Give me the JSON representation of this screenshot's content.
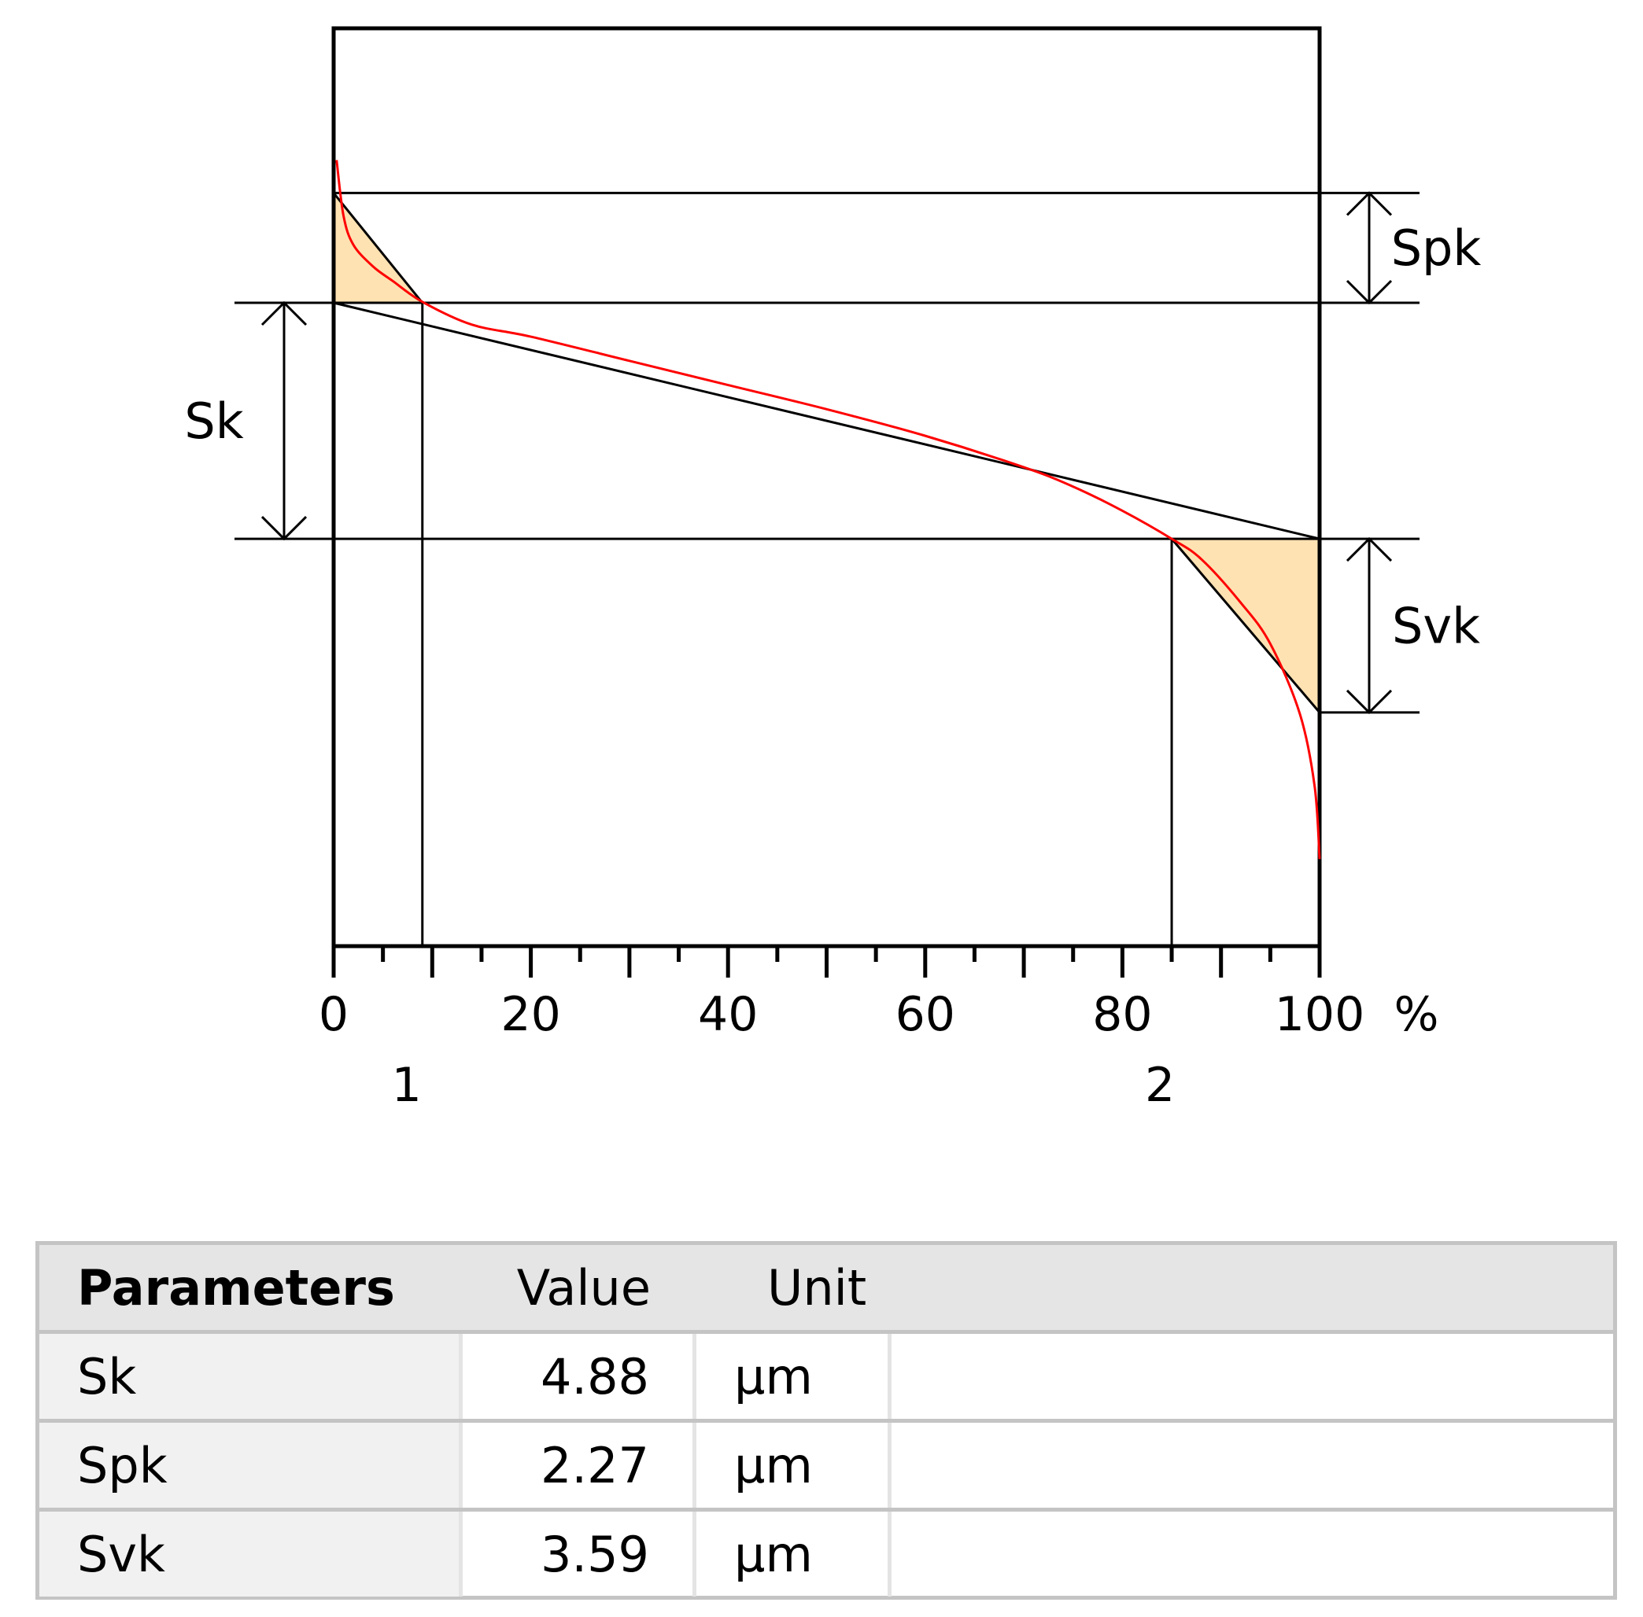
{
  "chart_data": {
    "type": "line",
    "title": "",
    "xlabel": "",
    "ylabel": "",
    "x_unit": "%",
    "xlim": [
      0,
      100
    ],
    "x_ticks": [
      0,
      20,
      40,
      60,
      80,
      100
    ],
    "x_tick_labels": [
      "0",
      "20",
      "40",
      "60",
      "80",
      "100"
    ],
    "x_unit_label": "%",
    "minor_tick_step": 5,
    "grid": false,
    "curve": {
      "color": "#ff0000",
      "x": [
        0.3,
        1,
        2,
        4,
        6,
        9,
        14,
        20,
        30,
        40,
        50,
        60,
        70,
        75,
        80,
        85,
        88,
        92,
        95,
        98,
        99.5,
        100
      ],
      "y": [
        2.95,
        1.8,
        1.2,
        0.75,
        0.45,
        0.02,
        -0.45,
        -0.7,
        -1.2,
        -1.7,
        -2.2,
        -2.75,
        -3.4,
        -3.8,
        -4.3,
        -4.88,
        -5.3,
        -6.2,
        -7.05,
        -8.5,
        -10.0,
        -11.5
      ]
    },
    "equivalent_line": {
      "x": [
        0,
        100
      ],
      "y": [
        0,
        -4.88
      ]
    },
    "peak_triangle": {
      "x": [
        0,
        0,
        9
      ],
      "y": [
        0,
        2.27,
        0
      ],
      "fill": "#ffe2b2"
    },
    "valley_triangle": {
      "x": [
        85,
        100,
        100
      ],
      "y": [
        -4.88,
        -4.88,
        -8.47
      ],
      "fill": "#ffe2b2"
    },
    "mr_lines": [
      {
        "label": "1",
        "x": 9
      },
      {
        "label": "2",
        "x": 85
      }
    ],
    "levels": {
      "top": 2.27,
      "upper": 0,
      "lower": -4.88,
      "bottom": -8.47
    },
    "annotations": [
      {
        "label": "Sk",
        "from": 0,
        "to": -4.88,
        "side": "left"
      },
      {
        "label": "Spk",
        "from": 2.27,
        "to": 0,
        "side": "right"
      },
      {
        "label": "Svk",
        "from": -4.88,
        "to": -8.47,
        "side": "right"
      }
    ]
  },
  "table": {
    "headers": [
      "Parameters",
      "Value",
      "Unit"
    ],
    "rows": [
      {
        "name": "Sk",
        "value": "4.88",
        "unit": "µm"
      },
      {
        "name": "Spk",
        "value": "2.27",
        "unit": "µm"
      },
      {
        "name": "Svk",
        "value": "3.59",
        "unit": "µm"
      }
    ]
  }
}
